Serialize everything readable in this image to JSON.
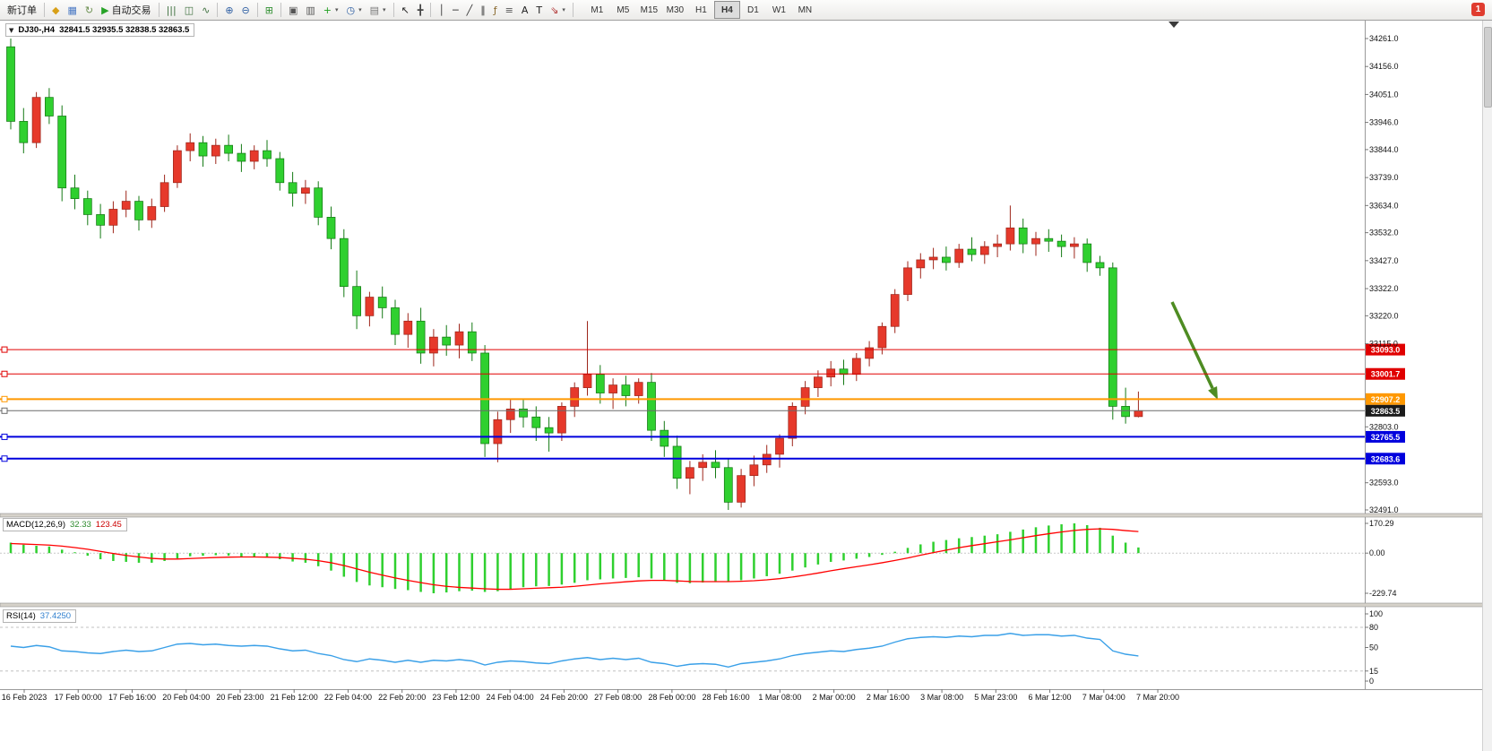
{
  "window": {
    "notification_badge": "1"
  },
  "toolbar": {
    "items": [
      {
        "name": "new-order-button",
        "label": "新订单"
      },
      {
        "type": "separator"
      },
      {
        "name": "market-watch-icon",
        "glyph": "◆",
        "color": "#d8a018"
      },
      {
        "name": "data-window-icon",
        "glyph": "▦",
        "color": "#4a79c4"
      },
      {
        "name": "refresh-icon",
        "glyph": "↻",
        "color": "#6a8f4f"
      },
      {
        "name": "auto-trading-button",
        "glyph": "▶",
        "color": "#27a327",
        "label": "自动交易"
      },
      {
        "type": "separator"
      },
      {
        "name": "bar-chart-icon",
        "glyph": "|||",
        "color": "#3d6f3d"
      },
      {
        "name": "candlestick-chart-icon",
        "glyph": "◫",
        "color": "#3d6f3d"
      },
      {
        "name": "line-chart-icon",
        "glyph": "∿",
        "color": "#3d6f3d"
      },
      {
        "type": "separator"
      },
      {
        "name": "zoom-in-icon",
        "glyph": "⊕",
        "color": "#2f5fa3"
      },
      {
        "name": "zoom-out-icon",
        "glyph": "⊖",
        "color": "#2f5fa3"
      },
      {
        "type": "separator"
      },
      {
        "name": "tile-windows-icon",
        "glyph": "⊞",
        "color": "#2f8f2f"
      },
      {
        "type": "separator"
      },
      {
        "name": "cascade-windows-icon",
        "glyph": "▣",
        "color": "#555555"
      },
      {
        "name": "arrange-windows-icon",
        "glyph": "▥",
        "color": "#555555"
      },
      {
        "name": "new-chart-button",
        "glyph": "+",
        "color": "#1f9f1f",
        "dropdown": true
      },
      {
        "name": "period-button",
        "glyph": "◷",
        "color": "#2f5fa3",
        "dropdown": true
      },
      {
        "name": "template-button",
        "glyph": "▤",
        "color": "#777777",
        "dropdown": true
      },
      {
        "type": "separator"
      },
      {
        "name": "cursor-icon",
        "glyph": "↖",
        "color": "#222222"
      },
      {
        "name": "crosshair-icon",
        "glyph": "╋",
        "color": "#444444"
      },
      {
        "type": "separator"
      },
      {
        "name": "vertical-line-icon",
        "glyph": "│",
        "color": "#333333"
      },
      {
        "name": "horizontal-line-icon",
        "glyph": "─",
        "color": "#333333"
      },
      {
        "name": "trendline-icon",
        "glyph": "╱",
        "color": "#333333"
      },
      {
        "name": "channel-icon",
        "glyph": "∥",
        "color": "#333333"
      },
      {
        "name": "fibonacci-icon",
        "glyph": "ƒ",
        "color": "#8a6a2f"
      },
      {
        "name": "levels-icon",
        "glyph": "≡",
        "color": "#555555"
      },
      {
        "name": "text-icon",
        "glyph": "A",
        "color": "#222222"
      },
      {
        "name": "label-icon",
        "glyph": "T",
        "color": "#222222"
      },
      {
        "name": "shapes-button",
        "glyph": "⇘",
        "color": "#b03030",
        "dropdown": true
      },
      {
        "type": "separator"
      }
    ],
    "timeframes": [
      {
        "label": "M1"
      },
      {
        "label": "M5"
      },
      {
        "label": "M15"
      },
      {
        "label": "M30"
      },
      {
        "label": "H1"
      },
      {
        "label": "H4",
        "active": true
      },
      {
        "label": "D1"
      },
      {
        "label": "W1"
      },
      {
        "label": "MN"
      }
    ]
  },
  "chart": {
    "symbol_period": "DJ30-,H4",
    "open": 32841.5,
    "high": 32935.5,
    "low": 32838.5,
    "close": 32863.5,
    "ohlc_display": "32841.5 32935.5 32838.5 32863.5",
    "bull_color": "#e6392b",
    "bear_color": "#2fd02f",
    "price_axis": {
      "max": 34261.0,
      "min": 32491.0,
      "ticks": [
        34261.0,
        34156.0,
        34051.0,
        33946.0,
        33844.0,
        33739.0,
        33634.0,
        33532.0,
        33427.0,
        33322.0,
        33220.0,
        33115.0,
        32803.0,
        32593.0,
        32491.0
      ]
    },
    "levels": [
      {
        "price": 33093.0,
        "label": "33093.0",
        "color": "#e00000",
        "tag_color": "#e00000",
        "width": 1
      },
      {
        "price": 33001.7,
        "label": "33001.7",
        "color": "#e00000",
        "tag_color": "#e00000",
        "width": 1
      },
      {
        "price": 32907.2,
        "label": "32907.2",
        "color": "#ff9800",
        "tag_color": "#ff9800",
        "width": 2
      },
      {
        "price": 32863.5,
        "label": "32863.5",
        "color": "#6a6a6a",
        "tag_color": "#1a1a1a",
        "width": 1
      },
      {
        "price": 32765.5,
        "label": "32765.5",
        "color": "#0000dd",
        "tag_color": "#0000dd",
        "width": 2
      },
      {
        "price": 32683.6,
        "label": "32683.6",
        "color": "#0000dd",
        "tag_color": "#0000dd",
        "width": 2
      }
    ],
    "time_labels": [
      "16 Feb 2023",
      "17 Feb 00:00",
      "17 Feb 16:00",
      "20 Feb 04:00",
      "20 Feb 23:00",
      "21 Feb 12:00",
      "22 Feb 04:00",
      "22 Feb 20:00",
      "23 Feb 12:00",
      "24 Feb 04:00",
      "24 Feb 20:00",
      "27 Feb 08:00",
      "28 Feb 00:00",
      "28 Feb 16:00",
      "1 Mar 08:00",
      "2 Mar 00:00",
      "2 Mar 16:00",
      "3 Mar 08:00",
      "5 Mar 23:00",
      "6 Mar 12:00",
      "7 Mar 04:00",
      "7 Mar 20:00"
    ],
    "candles": [
      [
        34230,
        34261,
        33920,
        33950
      ],
      [
        33950,
        34000,
        33830,
        33870
      ],
      [
        33870,
        34060,
        33850,
        34040
      ],
      [
        34040,
        34075,
        33940,
        33970
      ],
      [
        33970,
        34010,
        33650,
        33700
      ],
      [
        33700,
        33750,
        33620,
        33660
      ],
      [
        33660,
        33690,
        33560,
        33600
      ],
      [
        33600,
        33640,
        33510,
        33560
      ],
      [
        33560,
        33650,
        33530,
        33620
      ],
      [
        33620,
        33690,
        33590,
        33650
      ],
      [
        33650,
        33670,
        33540,
        33580
      ],
      [
        33580,
        33660,
        33550,
        33630
      ],
      [
        33630,
        33750,
        33610,
        33720
      ],
      [
        33720,
        33860,
        33700,
        33840
      ],
      [
        33840,
        33905,
        33800,
        33870
      ],
      [
        33870,
        33895,
        33780,
        33820
      ],
      [
        33820,
        33885,
        33790,
        33860
      ],
      [
        33860,
        33900,
        33800,
        33830
      ],
      [
        33830,
        33865,
        33760,
        33800
      ],
      [
        33800,
        33860,
        33770,
        33840
      ],
      [
        33840,
        33880,
        33780,
        33810
      ],
      [
        33810,
        33835,
        33690,
        33720
      ],
      [
        33720,
        33760,
        33630,
        33680
      ],
      [
        33680,
        33730,
        33640,
        33700
      ],
      [
        33700,
        33725,
        33560,
        33590
      ],
      [
        33590,
        33630,
        33470,
        33510
      ],
      [
        33510,
        33545,
        33290,
        33330
      ],
      [
        33330,
        33390,
        33170,
        33220
      ],
      [
        33220,
        33310,
        33180,
        33290
      ],
      [
        33290,
        33330,
        33210,
        33250
      ],
      [
        33250,
        33280,
        33110,
        33150
      ],
      [
        33150,
        33230,
        33100,
        33200
      ],
      [
        33200,
        33250,
        33040,
        33080
      ],
      [
        33080,
        33170,
        33030,
        33140
      ],
      [
        33140,
        33185,
        33070,
        33110
      ],
      [
        33110,
        33190,
        33060,
        33160
      ],
      [
        33160,
        33195,
        33050,
        33080
      ],
      [
        33080,
        33110,
        32690,
        32740
      ],
      [
        32740,
        32860,
        32670,
        32830
      ],
      [
        32830,
        32905,
        32780,
        32870
      ],
      [
        32870,
        32910,
        32800,
        32840
      ],
      [
        32840,
        32880,
        32750,
        32800
      ],
      [
        32800,
        32840,
        32710,
        32780
      ],
      [
        32780,
        32895,
        32750,
        32880
      ],
      [
        32880,
        32970,
        32840,
        32950
      ],
      [
        32950,
        33200,
        32920,
        33000
      ],
      [
        33000,
        33035,
        32890,
        32930
      ],
      [
        32930,
        32985,
        32870,
        32960
      ],
      [
        32960,
        32995,
        32880,
        32920
      ],
      [
        32920,
        32985,
        32890,
        32970
      ],
      [
        32970,
        33005,
        32750,
        32790
      ],
      [
        32790,
        32825,
        32690,
        32730
      ],
      [
        32730,
        32770,
        32570,
        32610
      ],
      [
        32610,
        32675,
        32550,
        32650
      ],
      [
        32650,
        32700,
        32600,
        32670
      ],
      [
        32670,
        32715,
        32610,
        32650
      ],
      [
        32650,
        32685,
        32491,
        32520
      ],
      [
        32520,
        32645,
        32500,
        32620
      ],
      [
        32620,
        32695,
        32580,
        32660
      ],
      [
        32660,
        32735,
        32630,
        32700
      ],
      [
        32700,
        32775,
        32650,
        32760
      ],
      [
        32760,
        32895,
        32730,
        32880
      ],
      [
        32880,
        32975,
        32850,
        32950
      ],
      [
        32950,
        33015,
        32915,
        32990
      ],
      [
        32990,
        33050,
        32955,
        33020
      ],
      [
        33020,
        33055,
        32960,
        33000
      ],
      [
        33000,
        33080,
        32975,
        33060
      ],
      [
        33060,
        33125,
        33030,
        33100
      ],
      [
        33100,
        33195,
        33075,
        33180
      ],
      [
        33180,
        33320,
        33155,
        33300
      ],
      [
        33300,
        33425,
        33275,
        33400
      ],
      [
        33400,
        33455,
        33360,
        33430
      ],
      [
        33430,
        33475,
        33395,
        33440
      ],
      [
        33440,
        33480,
        33390,
        33420
      ],
      [
        33420,
        33490,
        33400,
        33470
      ],
      [
        33470,
        33515,
        33425,
        33450
      ],
      [
        33450,
        33500,
        33415,
        33480
      ],
      [
        33480,
        33525,
        33440,
        33490
      ],
      [
        33490,
        33634,
        33465,
        33550
      ],
      [
        33550,
        33585,
        33455,
        33490
      ],
      [
        33490,
        33535,
        33445,
        33510
      ],
      [
        33510,
        33545,
        33460,
        33500
      ],
      [
        33500,
        33525,
        33440,
        33480
      ],
      [
        33480,
        33515,
        33435,
        33490
      ],
      [
        33490,
        33510,
        33385,
        33420
      ],
      [
        33420,
        33445,
        33370,
        33400
      ],
      [
        33400,
        33420,
        32830,
        32880
      ],
      [
        32880,
        32950,
        32815,
        32841.5
      ],
      [
        32841.5,
        32935.5,
        32838.5,
        32863.5
      ]
    ]
  },
  "macd": {
    "label": "MACD(12,26,9)",
    "main_value": "32.33",
    "signal_value": "123.45",
    "axis_labels": [
      "170.29",
      "0.00",
      "-229.74"
    ],
    "axis_values": [
      170.29,
      0,
      -229.74
    ],
    "histogram_color": "#2fd02f",
    "signal_color": "#ff0000",
    "histogram": [
      60,
      48,
      42,
      38,
      20,
      5,
      -15,
      -35,
      -45,
      -50,
      -55,
      -55,
      -45,
      -30,
      -18,
      -15,
      -12,
      -15,
      -20,
      -22,
      -25,
      -35,
      -48,
      -55,
      -75,
      -100,
      -135,
      -165,
      -185,
      -195,
      -205,
      -212,
      -222,
      -229.74,
      -225,
      -218,
      -215,
      -222,
      -218,
      -205,
      -195,
      -190,
      -188,
      -180,
      -170,
      -155,
      -150,
      -145,
      -142,
      -138,
      -145,
      -155,
      -170,
      -172,
      -168,
      -162,
      -165,
      -155,
      -145,
      -132,
      -118,
      -100,
      -82,
      -65,
      -50,
      -42,
      -32,
      -22,
      -10,
      8,
      30,
      50,
      65,
      75,
      85,
      92,
      100,
      108,
      122,
      135,
      148,
      158,
      165,
      170.29,
      160,
      145,
      100,
      60,
      32.33
    ],
    "signal": [
      55,
      52,
      49,
      46,
      40,
      32,
      22,
      10,
      -2,
      -13,
      -22,
      -30,
      -34,
      -34,
      -31,
      -28,
      -25,
      -23,
      -22,
      -22,
      -23,
      -25,
      -30,
      -35,
      -43,
      -55,
      -71,
      -90,
      -109,
      -126,
      -142,
      -156,
      -169,
      -181,
      -190,
      -196,
      -200,
      -204,
      -207,
      -207,
      -204,
      -201,
      -198,
      -195,
      -190,
      -183,
      -176,
      -170,
      -164,
      -159,
      -156,
      -156,
      -159,
      -162,
      -163,
      -163,
      -163,
      -161,
      -158,
      -153,
      -146,
      -137,
      -126,
      -114,
      -101,
      -89,
      -78,
      -67,
      -55,
      -42,
      -28,
      -12,
      3,
      17,
      31,
      43,
      54,
      65,
      76,
      88,
      100,
      111,
      121,
      130,
      136,
      139,
      136,
      129,
      123.45
    ]
  },
  "rsi": {
    "label": "RSI(14)",
    "value": "37.4250",
    "axis_labels": [
      "100",
      "80",
      "50",
      "15",
      "0"
    ],
    "axis_values": [
      100,
      80,
      50,
      15,
      0
    ],
    "dashed_levels": [
      80,
      15
    ],
    "line_color": "#3aa0e8",
    "series": [
      52,
      50,
      53,
      51,
      45,
      44,
      42,
      41,
      44,
      46,
      44,
      45,
      50,
      55,
      56,
      54,
      55,
      53,
      52,
      53,
      52,
      48,
      45,
      46,
      41,
      38,
      32,
      29,
      33,
      31,
      28,
      31,
      28,
      31,
      30,
      32,
      30,
      24,
      28,
      30,
      29,
      27,
      26,
      30,
      33,
      35,
      32,
      34,
      32,
      34,
      28,
      26,
      22,
      25,
      26,
      25,
      21,
      26,
      28,
      30,
      33,
      38,
      41,
      43,
      45,
      44,
      47,
      49,
      52,
      58,
      63,
      65,
      66,
      65,
      67,
      66,
      68,
      68,
      71,
      68,
      69,
      69,
      67,
      68,
      64,
      62,
      45,
      40,
      37.425
    ]
  },
  "annotation_arrow": {
    "color": "#4e8c22"
  }
}
